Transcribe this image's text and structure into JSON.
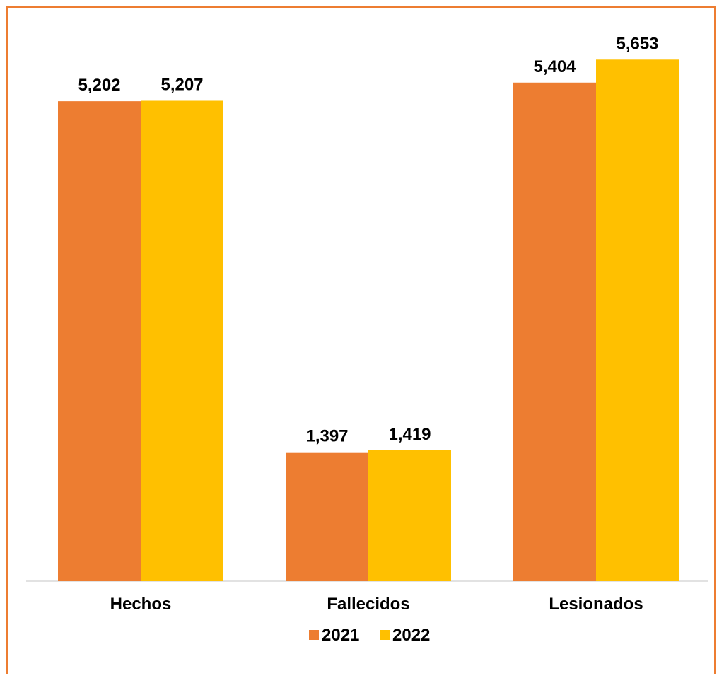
{
  "chart_data": {
    "type": "bar",
    "categories": [
      "Hechos",
      "Fallecidos",
      "Lesionados"
    ],
    "series": [
      {
        "name": "2021",
        "values": [
          5202,
          1397,
          5404
        ],
        "labels": [
          "5,202",
          "1,397",
          "5,404"
        ],
        "color": "#ED7D31"
      },
      {
        "name": "2022",
        "values": [
          5207,
          1419,
          5653
        ],
        "labels": [
          "5,207",
          "1,419",
          "5,653"
        ],
        "color": "#FFC000"
      }
    ],
    "ylim": [
      0,
      6000
    ],
    "grid": false,
    "legend_position": "bottom",
    "title": "",
    "xlabel": "",
    "ylabel": ""
  },
  "colors": {
    "border": "#ED7D31",
    "axis": "#D9D9D9"
  }
}
